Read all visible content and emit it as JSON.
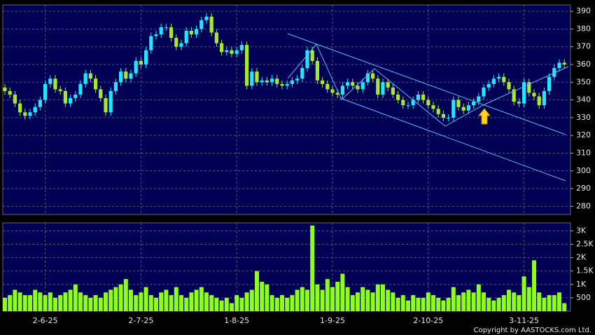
{
  "chart_data": [
    {
      "type": "candlestick",
      "categories": [
        null,
        null,
        null,
        null,
        null,
        null,
        null,
        null,
        "2-6-25",
        null,
        null,
        null,
        null,
        null,
        null,
        null,
        null,
        null,
        null,
        null,
        null,
        null,
        null,
        null,
        null,
        null,
        null,
        "2-7-25",
        null,
        null,
        null,
        null,
        null,
        null,
        null,
        null,
        null,
        null,
        null,
        null,
        null,
        null,
        null,
        null,
        null,
        null,
        "1-8-25",
        null,
        null,
        null,
        null,
        null,
        null,
        null,
        null,
        null,
        null,
        null,
        null,
        null,
        null,
        null,
        null,
        null,
        null,
        "1-9-25",
        null,
        null,
        null,
        null,
        null,
        null,
        null,
        null,
        null,
        null,
        null,
        null,
        null,
        null,
        null,
        null,
        null,
        null,
        "2-10-25",
        null,
        null,
        null,
        null,
        null,
        null,
        null,
        null,
        null,
        null,
        null,
        null,
        null,
        null,
        null,
        null,
        null,
        null,
        "3-11-25",
        null,
        null,
        null,
        null,
        null,
        null,
        null,
        null
      ],
      "open": [
        347,
        345,
        343,
        338,
        333,
        331,
        333,
        336,
        340,
        349,
        352,
        346,
        345,
        338,
        341,
        343,
        349,
        355,
        352,
        346,
        341,
        333,
        345,
        350,
        356,
        352,
        355,
        362,
        360,
        368,
        376,
        377,
        381,
        381,
        375,
        370,
        372,
        379,
        377,
        380,
        385,
        387,
        378,
        372,
        367,
        368,
        366,
        368,
        371,
        348,
        356,
        350,
        351,
        350,
        352,
        349,
        348,
        349,
        351,
        352,
        358,
        368,
        362,
        351,
        349,
        346,
        344,
        343,
        348,
        350,
        348,
        346,
        350,
        355,
        352,
        343,
        350,
        347,
        343,
        340,
        337,
        337,
        340,
        343,
        340,
        337,
        335,
        332,
        330,
        330,
        340,
        336,
        334,
        337,
        339,
        342,
        347,
        349,
        352,
        353,
        350,
        346,
        339,
        338,
        350,
        344,
        342,
        337,
        345,
        353,
        358,
        361
      ],
      "high": [
        349,
        347,
        345,
        340,
        335,
        335,
        338,
        342,
        351,
        354,
        354,
        348,
        347,
        343,
        345,
        351,
        357,
        357,
        354,
        348,
        343,
        347,
        352,
        358,
        358,
        357,
        364,
        364,
        370,
        378,
        379,
        383,
        383,
        383,
        377,
        374,
        381,
        381,
        382,
        387,
        389,
        389,
        380,
        374,
        370,
        370,
        370,
        373,
        373,
        358,
        358,
        353,
        353,
        354,
        354,
        351,
        351,
        353,
        354,
        360,
        370,
        370,
        364,
        353,
        351,
        348,
        346,
        350,
        352,
        352,
        350,
        352,
        357,
        357,
        354,
        352,
        352,
        349,
        345,
        342,
        339,
        342,
        345,
        345,
        342,
        339,
        337,
        334,
        332,
        342,
        342,
        338,
        339,
        341,
        344,
        349,
        351,
        354,
        355,
        355,
        352,
        348,
        341,
        352,
        352,
        346,
        344,
        347,
        355,
        360,
        363,
        363
      ],
      "low": [
        343,
        341,
        336,
        331,
        329,
        329,
        331,
        334,
        338,
        347,
        344,
        343,
        336,
        336,
        339,
        341,
        347,
        350,
        344,
        339,
        331,
        331,
        343,
        348,
        350,
        350,
        353,
        358,
        358,
        366,
        374,
        375,
        379,
        373,
        368,
        368,
        370,
        375,
        375,
        378,
        383,
        376,
        370,
        365,
        365,
        364,
        364,
        366,
        346,
        346,
        348,
        348,
        348,
        348,
        347,
        346,
        346,
        347,
        349,
        350,
        356,
        360,
        349,
        347,
        344,
        342,
        341,
        341,
        346,
        346,
        344,
        344,
        348,
        350,
        341,
        341,
        345,
        341,
        338,
        335,
        335,
        335,
        338,
        338,
        335,
        333,
        330,
        328,
        328,
        328,
        334,
        332,
        332,
        335,
        337,
        340,
        345,
        347,
        350,
        348,
        344,
        337,
        336,
        336,
        342,
        340,
        335,
        335,
        343,
        351,
        356,
        358
      ],
      "close": [
        345,
        343,
        338,
        333,
        331,
        333,
        336,
        340,
        349,
        352,
        346,
        345,
        338,
        341,
        343,
        349,
        355,
        352,
        346,
        341,
        333,
        345,
        350,
        356,
        352,
        355,
        362,
        360,
        368,
        376,
        377,
        381,
        381,
        375,
        370,
        372,
        379,
        377,
        380,
        385,
        387,
        378,
        372,
        367,
        368,
        366,
        368,
        371,
        348,
        356,
        350,
        351,
        350,
        352,
        349,
        348,
        349,
        351,
        352,
        358,
        368,
        362,
        351,
        349,
        346,
        344,
        343,
        348,
        350,
        348,
        346,
        350,
        355,
        352,
        343,
        350,
        347,
        343,
        340,
        337,
        337,
        340,
        343,
        340,
        337,
        335,
        332,
        330,
        330,
        340,
        336,
        334,
        337,
        339,
        342,
        347,
        349,
        352,
        353,
        350,
        346,
        339,
        338,
        350,
        344,
        342,
        337,
        345,
        353,
        358,
        361,
        360
      ],
      "up_color": "#22e6ff",
      "down_color": "#a6e830",
      "ylim": [
        275.4,
        393.6
      ],
      "yticks": [
        280,
        290,
        300,
        310,
        320,
        330,
        340,
        350,
        360,
        370,
        380,
        390
      ],
      "grid": true
    },
    {
      "type": "bar",
      "values": [
        500,
        600,
        800,
        700,
        600,
        600,
        800,
        700,
        600,
        700,
        500,
        600,
        700,
        800,
        1000,
        700,
        600,
        500,
        600,
        500,
        700,
        800,
        900,
        1000,
        1200,
        800,
        600,
        700,
        900,
        600,
        500,
        700,
        800,
        600,
        900,
        600,
        500,
        700,
        800,
        900,
        700,
        600,
        500,
        400,
        500,
        300,
        600,
        500,
        700,
        800,
        1500,
        1100,
        1000,
        600,
        500,
        600,
        500,
        600,
        800,
        900,
        800,
        3200,
        1000,
        800,
        1200,
        900,
        1100,
        1400,
        900,
        600,
        700,
        900,
        800,
        700,
        1000,
        1000,
        800,
        700,
        500,
        600,
        400,
        600,
        500,
        500,
        700,
        600,
        500,
        400,
        500,
        900,
        600,
        700,
        800,
        700,
        1000,
        700,
        500,
        400,
        500,
        600,
        800,
        700,
        600,
        1300,
        900,
        1900,
        700,
        500,
        600,
        600,
        700,
        300
      ],
      "color": "#8cff1a",
      "ylim": [
        0,
        3300
      ],
      "yticks": [
        500,
        {
          "value": 1000,
          "label": "1K"
        },
        {
          "value": 1500,
          "label": "1.5K"
        },
        {
          "value": 2000,
          "label": "2K"
        },
        {
          "value": 2500,
          "label": "2.5K"
        },
        {
          "value": 3000,
          "label": "3K"
        }
      ],
      "grid": true,
      "annotation": "Copyright by AASTOCKS.com Ltd."
    }
  ]
}
